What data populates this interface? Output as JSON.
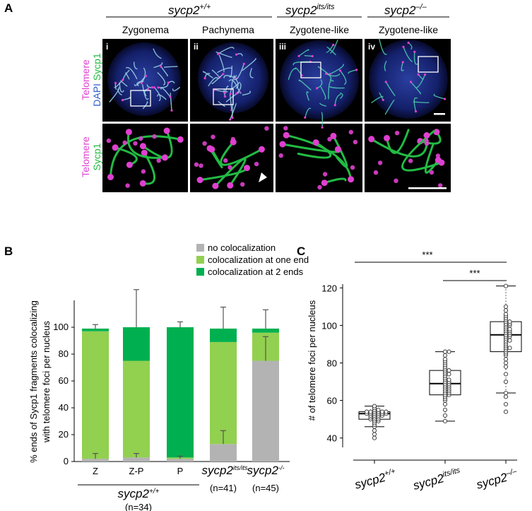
{
  "panel_a": {
    "label": "A",
    "genotypes": [
      {
        "base": "sycp2",
        "sup": "+/+"
      },
      {
        "base": "sycp2",
        "sup": "its/its"
      },
      {
        "base": "sycp2",
        "sup": "–/–"
      }
    ],
    "stages": [
      "Zygonema",
      "Pachynema",
      "Zygotene-like",
      "Zygotene-like"
    ],
    "roman": [
      "i",
      "ii",
      "iii",
      "iv"
    ],
    "row1_label": {
      "telomere": "Telomere",
      "dapi": "DAPI",
      "sycp1": "Sycp1"
    },
    "row2_label": {
      "telomere": "Telomere",
      "sycp1": "Sycp1"
    },
    "colors": {
      "telomere": "#e040d0",
      "dapi": "#2f5fd0",
      "sycp1": "#22bb44"
    }
  },
  "panel_b": {
    "label": "B",
    "legend": [
      "no colocalization",
      "colocalization at one end",
      "colocalization at 2 ends"
    ],
    "ylabel_line1": "% ends of Sycp1 fragments colocalizing",
    "ylabel_line2": "with telomere foci per nucleus",
    "group_label": {
      "base": "sycp2",
      "sup": "+/+"
    },
    "group_n": "(n=34)",
    "xlabels": [
      {
        "base": "Z",
        "sup": "",
        "n": ""
      },
      {
        "base": "Z-P",
        "sup": "",
        "n": ""
      },
      {
        "base": "P",
        "sup": "",
        "n": ""
      },
      {
        "base": "sycp2",
        "sup": "its/its",
        "n": "(n=41)"
      },
      {
        "base": "sycp2",
        "sup": "-/-",
        "n": "(n=45)"
      }
    ]
  },
  "panel_c": {
    "label": "C",
    "ylabel": "# of telomere foci per nucleus",
    "significance": [
      "***",
      "***"
    ],
    "xlabels": [
      {
        "base": "sycp2",
        "sup": "+/+"
      },
      {
        "base": "sycp2",
        "sup": "its/its"
      },
      {
        "base": "sycp2",
        "sup": "–/–"
      }
    ]
  },
  "chart_data": [
    {
      "type": "bar",
      "stacked": true,
      "categories": [
        "Z",
        "Z-P",
        "P",
        "sycp2 its/its",
        "sycp2 -/-"
      ],
      "series": [
        {
          "name": "no colocalization",
          "color": "#b3b3b3",
          "values": [
            2,
            3,
            2,
            13,
            75
          ],
          "err": [
            4,
            3,
            2,
            10,
            18
          ]
        },
        {
          "name": "colocalization at one end",
          "color": "#92d050",
          "values": [
            95,
            72,
            1,
            76,
            21
          ],
          "err": [
            0,
            0,
            0,
            0,
            0
          ]
        },
        {
          "name": "colocalization at 2 ends",
          "color": "#00b050",
          "values": [
            2,
            25,
            97,
            10,
            3
          ],
          "err": [
            3,
            28,
            4,
            16,
            14
          ]
        }
      ],
      "ylim": [
        0,
        120
      ],
      "yticks": [
        0,
        20,
        40,
        60,
        80,
        100
      ],
      "ylabel": "% ends of Sycp1 fragments colocalizing with telomere foci per nucleus"
    },
    {
      "type": "scatter",
      "subtype": "box-and-dots",
      "categories": [
        "sycp2 +/+",
        "sycp2 its/its",
        "sycp2 -/-"
      ],
      "boxes": [
        {
          "whisker_low": 46,
          "q1": 50,
          "median": 53,
          "q3": 54,
          "whisker_high": 57
        },
        {
          "whisker_low": 49,
          "q1": 63,
          "median": 69,
          "q3": 76,
          "whisker_high": 86
        },
        {
          "whisker_low": 64,
          "q1": 86,
          "median": 95,
          "q3": 102,
          "whisker_high": 121
        }
      ],
      "points": [
        [
          40,
          42,
          44,
          46,
          47,
          48,
          49,
          49,
          50,
          50,
          50,
          51,
          51,
          51,
          52,
          52,
          52,
          52,
          53,
          53,
          53,
          53,
          53,
          53,
          54,
          54,
          54,
          54,
          54,
          54,
          55,
          55,
          56,
          57
        ],
        [
          49,
          52,
          55,
          58,
          60,
          61,
          62,
          63,
          63,
          64,
          64,
          65,
          65,
          66,
          66,
          67,
          67,
          68,
          68,
          69,
          69,
          70,
          70,
          71,
          71,
          72,
          73,
          74,
          74,
          75,
          76,
          76,
          77,
          78,
          79,
          80,
          81,
          82,
          84,
          86,
          86
        ],
        [
          54,
          58,
          62,
          64,
          70,
          74,
          78,
          80,
          82,
          84,
          85,
          86,
          87,
          88,
          88,
          89,
          90,
          91,
          92,
          92,
          93,
          94,
          94,
          95,
          95,
          96,
          96,
          97,
          97,
          98,
          98,
          99,
          100,
          100,
          101,
          101,
          102,
          102,
          103,
          104,
          105,
          106,
          108,
          110,
          121
        ]
      ],
      "ylim": [
        35,
        122
      ],
      "yticks": [
        40,
        60,
        80,
        100,
        120
      ],
      "ylabel": "# of telomere foci per nucleus",
      "significance": [
        {
          "from": "sycp2 +/+",
          "to": "sycp2 -/-",
          "label": "***"
        },
        {
          "from": "sycp2 its/its",
          "to": "sycp2 -/-",
          "label": "***"
        }
      ]
    }
  ]
}
